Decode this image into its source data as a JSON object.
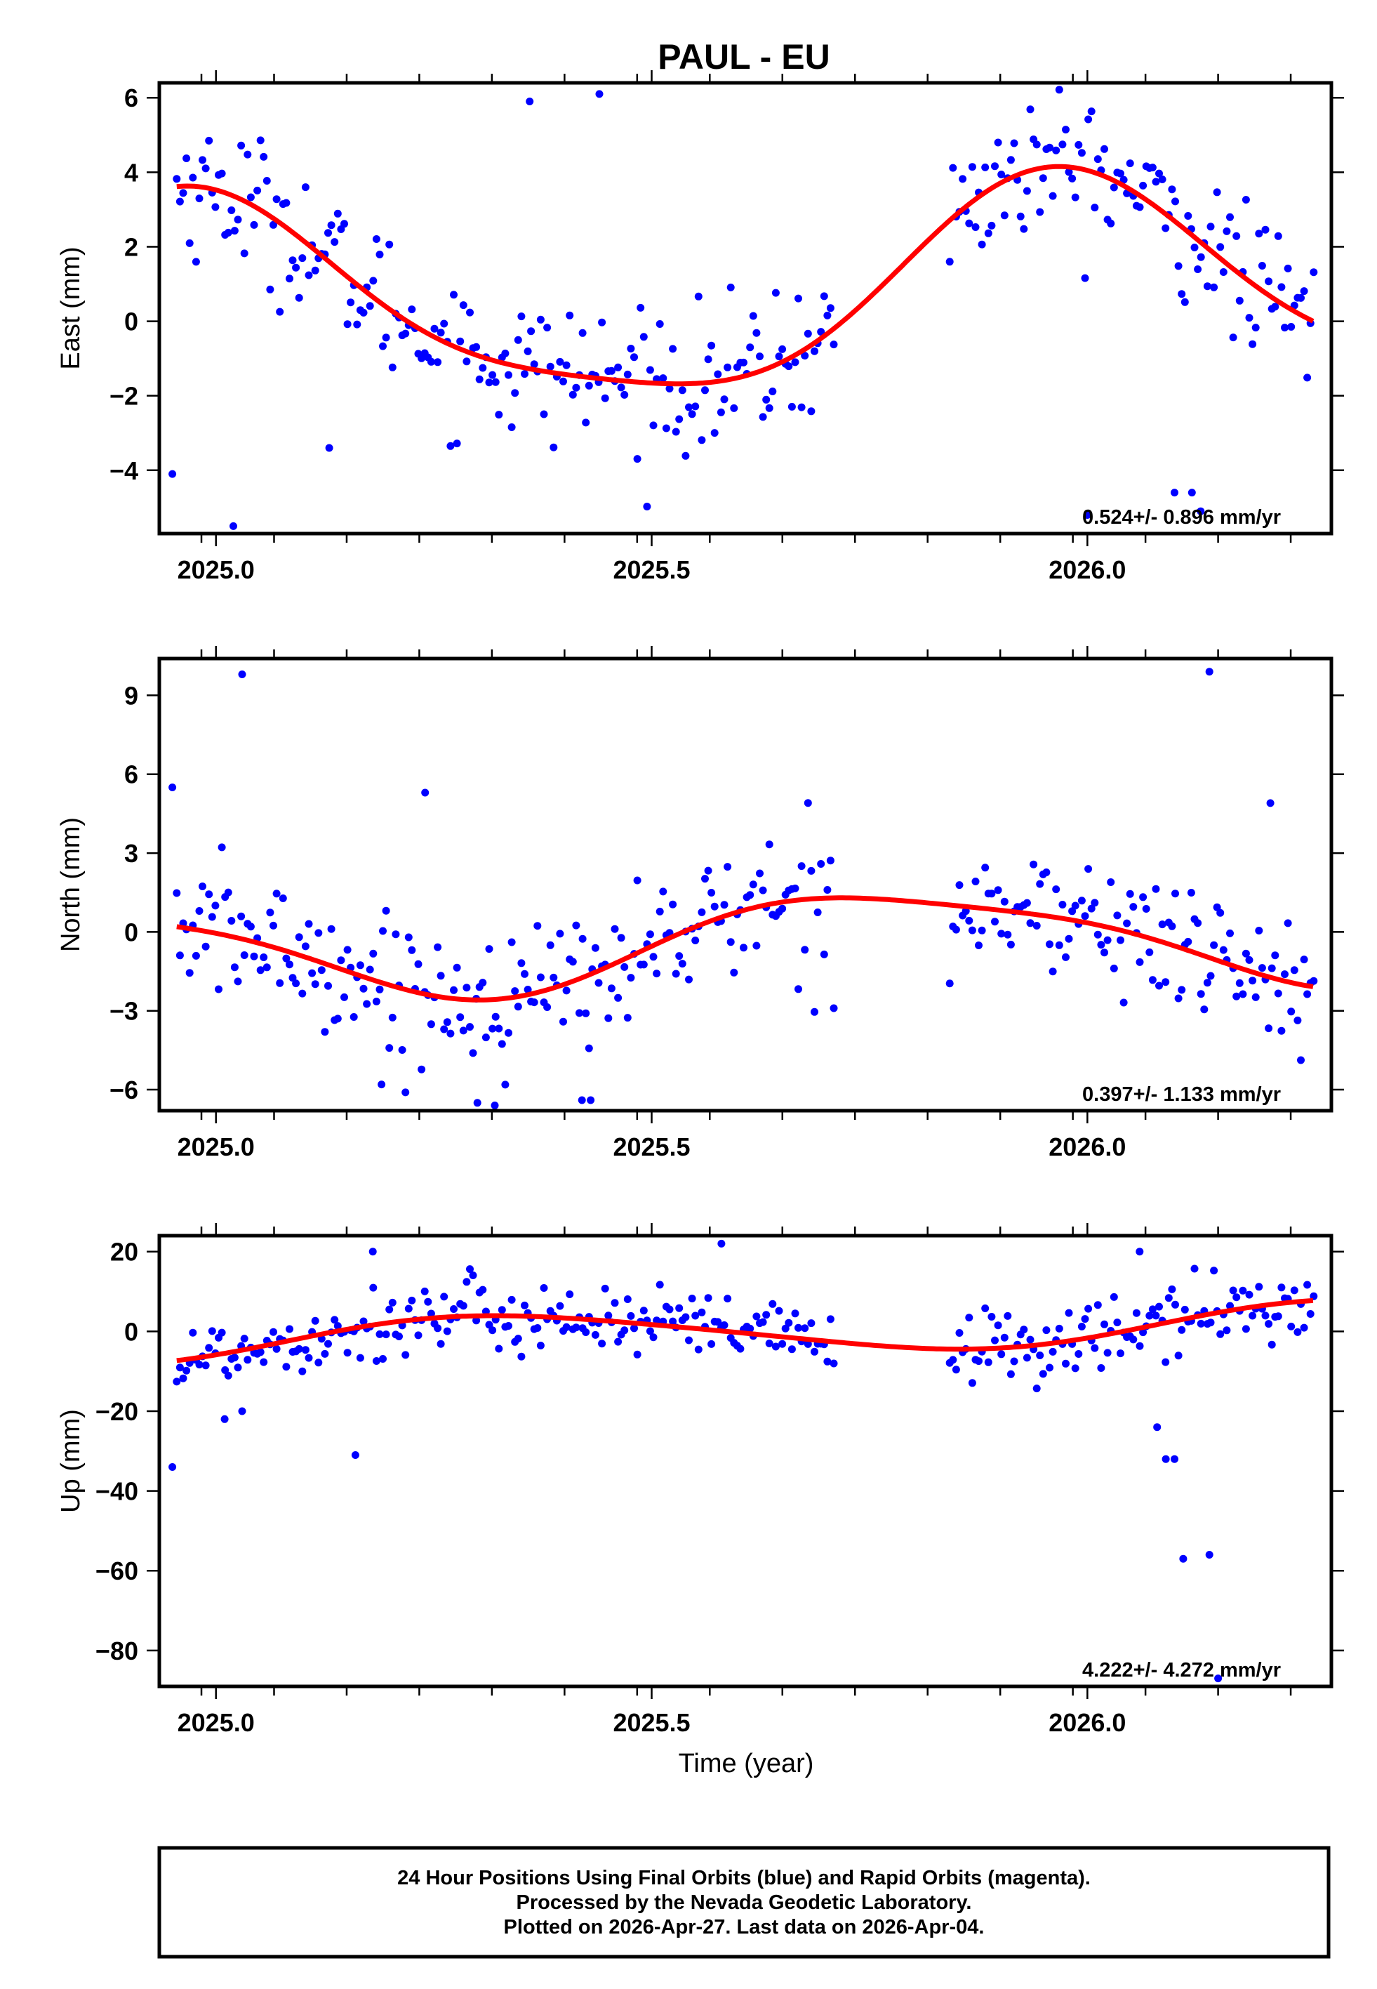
{
  "chart_data": {
    "type": "scatter",
    "title": "PAUL - EU",
    "xlabel": "Time (year)",
    "x_ticks": [
      "2025.0",
      "2025.5",
      "2026.0"
    ],
    "x_tick_values": [
      2025.0,
      2025.5,
      2026.0
    ],
    "xlim": [
      2024.935,
      2026.28
    ],
    "panels": [
      {
        "name": "east",
        "ylabel": "East (mm)",
        "ylim": [
          -5.7,
          6.4
        ],
        "y_ticks": [
          "6",
          "4",
          "2",
          "0",
          "−2",
          "−4"
        ],
        "y_tick_values": [
          6,
          4,
          2,
          0,
          -2,
          -4
        ],
        "rate_label": "0.524+/- 0.896 mm/yr",
        "fit": {
          "mean": 0.64,
          "rate": 0.524,
          "annual_cos": -1.97,
          "annual_sin": 1.92,
          "semi_cos": -0.18,
          "semi_sin": -0.56,
          "t0": 2025.6
        },
        "noise_sd": 0.95,
        "outliers": [
          [
            2025.02,
            -5.5
          ],
          [
            2026.1,
            -4.6
          ],
          [
            2026.12,
            -4.6
          ],
          [
            2026.0,
            -5.2
          ],
          [
            2026.13,
            -5.1
          ],
          [
            2025.44,
            6.1
          ],
          [
            2025.36,
            5.9
          ],
          [
            2025.13,
            -3.4
          ],
          [
            2024.95,
            -4.1
          ]
        ]
      },
      {
        "name": "north",
        "ylabel": "North (mm)",
        "ylim": [
          -6.8,
          10.4
        ],
        "y_ticks": [
          "9",
          "6",
          "3",
          "0",
          "−3",
          "−6"
        ],
        "y_tick_values": [
          9,
          6,
          3,
          0,
          -3,
          -6
        ],
        "rate_label": "0.397+/- 1.133 mm/yr",
        "fit": {
          "mean": -0.35,
          "rate": 0.397,
          "annual_cos": 0.75,
          "annual_sin": 1.62,
          "semi_cos": 0.37,
          "semi_sin": -0.08,
          "t0": 2025.6
        },
        "noise_sd": 1.3,
        "outliers": [
          [
            2025.03,
            9.8
          ],
          [
            2026.14,
            9.9
          ],
          [
            2024.95,
            5.5
          ],
          [
            2025.24,
            5.3
          ],
          [
            2025.3,
            -6.5
          ],
          [
            2025.42,
            -6.4
          ],
          [
            2025.43,
            -6.4
          ],
          [
            2025.32,
            -6.6
          ],
          [
            2025.19,
            -5.8
          ],
          [
            2026.21,
            4.9
          ]
        ]
      },
      {
        "name": "up",
        "ylabel": "Up (mm)",
        "ylim": [
          -89,
          24
        ],
        "y_ticks": [
          "20",
          "0",
          "−20",
          "−40",
          "−60",
          "−80"
        ],
        "y_tick_values": [
          20,
          0,
          -20,
          -40,
          -60,
          -80
        ],
        "rate_label": "4.222+/- 4.272 mm/yr",
        "fit": {
          "mean": -0.1,
          "rate": 4.222,
          "annual_cos": -0.4,
          "annual_sin": -5.2,
          "semi_cos": 0.2,
          "semi_sin": 0.6,
          "t0": 2025.6
        },
        "noise_sd": 4.6,
        "outliers": [
          [
            2024.95,
            -34
          ],
          [
            2025.16,
            -31
          ],
          [
            2026.09,
            -32
          ],
          [
            2026.1,
            -32
          ],
          [
            2026.11,
            -57
          ],
          [
            2026.14,
            -56
          ],
          [
            2026.15,
            -87
          ],
          [
            2025.01,
            -22
          ],
          [
            2025.03,
            -20
          ],
          [
            2026.08,
            -24
          ],
          [
            2025.58,
            22
          ],
          [
            2026.06,
            20
          ],
          [
            2025.18,
            20
          ]
        ]
      }
    ],
    "series": [
      {
        "name": "24 Hour Positions (Final Orbits)",
        "color": "#0000ff",
        "marker": "dot"
      },
      {
        "name": "Model fit",
        "color": "#ff0000",
        "marker": "line"
      }
    ],
    "data_gap": [
      2025.71,
      2025.84
    ],
    "daily_samples": {
      "start": 2024.955,
      "end": 2026.26,
      "step_days": 1.35
    }
  },
  "footer": {
    "line1": "24 Hour Positions Using Final Orbits (blue) and Rapid Orbits (magenta).",
    "line2": "Processed by the Nevada Geodetic Laboratory.",
    "line3": "Plotted on 2026-Apr-27. Last data on 2026-Apr-04."
  }
}
